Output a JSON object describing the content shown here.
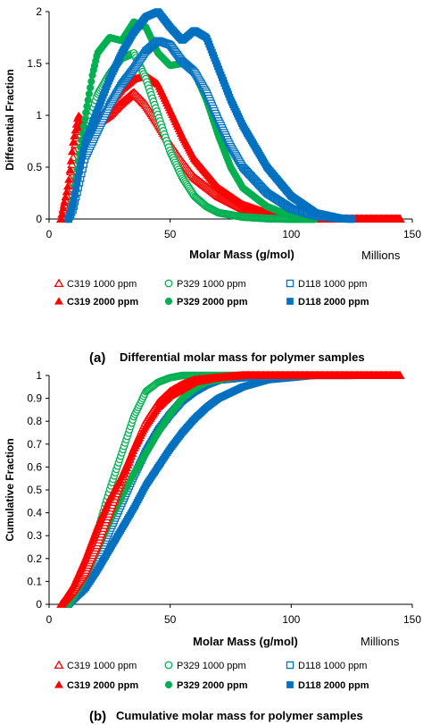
{
  "series_styles": [
    {
      "key": "C319_1000",
      "color": "#ff0000",
      "marker": "triangle-open"
    },
    {
      "key": "P329_1000",
      "color": "#00b050",
      "marker": "circle-open"
    },
    {
      "key": "D118_1000",
      "color": "#0070c0",
      "marker": "square-open"
    },
    {
      "key": "C319_2000",
      "color": "#ff0000",
      "marker": "triangle-filled"
    },
    {
      "key": "P329_2000",
      "color": "#00b050",
      "marker": "circle-filled"
    },
    {
      "key": "D118_2000",
      "color": "#0070c0",
      "marker": "square-filled"
    }
  ],
  "chart_data": [
    {
      "type": "scatter",
      "panel_label": "(a)",
      "caption": "Differential molar mass for polymer samples",
      "xlabel": "Molar Mass (g/mol)",
      "xlabel_units": "Millions",
      "ylabel": "Differential Fraction",
      "xlim": [
        0,
        150
      ],
      "ylim": [
        0,
        2
      ],
      "xticks": [
        "0",
        "50",
        "100",
        "150"
      ],
      "yticks": [
        "0",
        "0.5",
        "1",
        "1.5",
        "2"
      ],
      "grid": false,
      "legend_position": "bottom",
      "series": [
        {
          "name": "C319 1000 ppm",
          "x": [
            5,
            8,
            10,
            12,
            15,
            20,
            25,
            30,
            35,
            40,
            45,
            50,
            55,
            60,
            70,
            80,
            90,
            100,
            110,
            120,
            130,
            140,
            145
          ],
          "y": [
            0,
            0.3,
            0.6,
            0.88,
            0.9,
            0.92,
            1.0,
            1.12,
            1.22,
            1.1,
            0.92,
            0.72,
            0.55,
            0.4,
            0.22,
            0.1,
            0.04,
            0.015,
            0,
            0,
            0,
            0,
            0
          ]
        },
        {
          "name": "P329 1000 ppm",
          "x": [
            8,
            10,
            12,
            15,
            18,
            20,
            25,
            30,
            35,
            40,
            45,
            50,
            55,
            60,
            65,
            70,
            80,
            90,
            100,
            110
          ],
          "y": [
            0,
            0.15,
            0.4,
            0.75,
            1.05,
            1.2,
            1.4,
            1.55,
            1.6,
            1.35,
            1.0,
            0.65,
            0.4,
            0.22,
            0.12,
            0.06,
            0.02,
            0.005,
            0,
            0
          ]
        },
        {
          "name": "D118 1000 ppm",
          "x": [
            8,
            10,
            12,
            15,
            20,
            25,
            30,
            35,
            40,
            45,
            50,
            55,
            60,
            65,
            70,
            75,
            80,
            90,
            100,
            110,
            120,
            125
          ],
          "y": [
            0,
            0.1,
            0.3,
            0.6,
            0.85,
            1.1,
            1.3,
            1.45,
            1.62,
            1.72,
            1.68,
            1.52,
            1.42,
            1.22,
            0.95,
            0.7,
            0.5,
            0.25,
            0.1,
            0.03,
            0.005,
            0
          ]
        },
        {
          "name": "C319 2000 ppm",
          "x": [
            5,
            8,
            10,
            12,
            15,
            20,
            25,
            30,
            35,
            40,
            45,
            50,
            55,
            60,
            70,
            80,
            90,
            100,
            110,
            120,
            130,
            140,
            145
          ],
          "y": [
            0,
            0.35,
            0.75,
            1.0,
            0.92,
            0.95,
            1.1,
            1.25,
            1.35,
            1.38,
            1.3,
            1.05,
            0.8,
            0.58,
            0.3,
            0.14,
            0.06,
            0.02,
            0,
            0,
            0,
            0,
            0
          ]
        },
        {
          "name": "P329 2000 ppm",
          "x": [
            8,
            10,
            12,
            15,
            18,
            20,
            25,
            30,
            35,
            40,
            45,
            50,
            55,
            60,
            65,
            70,
            75,
            80,
            90,
            100,
            110
          ],
          "y": [
            0,
            0.2,
            0.55,
            1.0,
            1.4,
            1.6,
            1.75,
            1.72,
            1.9,
            1.85,
            1.6,
            1.48,
            1.5,
            1.42,
            1.15,
            0.8,
            0.5,
            0.3,
            0.12,
            0.03,
            0
          ]
        },
        {
          "name": "D118 2000 ppm",
          "x": [
            8,
            10,
            12,
            15,
            20,
            25,
            30,
            35,
            40,
            45,
            50,
            55,
            60,
            65,
            70,
            75,
            80,
            90,
            100,
            110,
            120,
            125
          ],
          "y": [
            0,
            0.15,
            0.4,
            0.75,
            1.05,
            1.35,
            1.6,
            1.8,
            1.95,
            2.0,
            1.85,
            1.72,
            1.82,
            1.75,
            1.45,
            1.15,
            0.9,
            0.5,
            0.22,
            0.06,
            0.01,
            0
          ]
        }
      ]
    },
    {
      "type": "scatter",
      "panel_label": "(b)",
      "caption": "Cumulative molar mass for polymer samples",
      "xlabel": "Molar Mass (g/mol)",
      "xlabel_units": "Millions",
      "ylabel": "Cumulative Fraction",
      "xlim": [
        0,
        150
      ],
      "ylim": [
        0,
        1
      ],
      "xticks": [
        "0",
        "50",
        "100",
        "150"
      ],
      "yticks": [
        "0",
        "0.1",
        "0.2",
        "0.3",
        "0.4",
        "0.5",
        "0.6",
        "0.7",
        "0.8",
        "0.9",
        "1"
      ],
      "grid": false,
      "legend_position": "bottom",
      "series": [
        {
          "name": "C319 1000 ppm",
          "x": [
            5,
            10,
            15,
            20,
            25,
            30,
            35,
            40,
            45,
            50,
            55,
            60,
            70,
            80,
            90,
            100,
            110,
            120,
            130,
            145
          ],
          "y": [
            0,
            0.06,
            0.14,
            0.26,
            0.4,
            0.54,
            0.68,
            0.8,
            0.88,
            0.93,
            0.96,
            0.98,
            0.99,
            1,
            1,
            1,
            1,
            1,
            1,
            1
          ]
        },
        {
          "name": "P329 1000 ppm",
          "x": [
            8,
            10,
            15,
            20,
            25,
            30,
            35,
            40,
            45,
            50,
            55,
            60,
            70,
            80,
            90,
            100,
            110
          ],
          "y": [
            0,
            0.04,
            0.15,
            0.32,
            0.5,
            0.66,
            0.82,
            0.93,
            0.97,
            0.99,
            1,
            1,
            1,
            1,
            1,
            1,
            1
          ]
        },
        {
          "name": "D118 1000 ppm",
          "x": [
            8,
            10,
            15,
            20,
            25,
            30,
            35,
            40,
            45,
            50,
            55,
            60,
            65,
            70,
            80,
            90,
            100,
            110,
            120,
            125
          ],
          "y": [
            0,
            0.03,
            0.1,
            0.2,
            0.32,
            0.44,
            0.56,
            0.67,
            0.76,
            0.83,
            0.89,
            0.93,
            0.96,
            0.98,
            0.99,
            1,
            1,
            1,
            1,
            1
          ]
        },
        {
          "name": "C319 2000 ppm",
          "x": [
            5,
            10,
            15,
            20,
            25,
            30,
            35,
            40,
            45,
            50,
            55,
            60,
            70,
            80,
            90,
            100,
            110,
            120,
            130,
            140,
            145
          ],
          "y": [
            0,
            0.08,
            0.2,
            0.34,
            0.46,
            0.56,
            0.68,
            0.78,
            0.86,
            0.91,
            0.94,
            0.97,
            0.99,
            1,
            1,
            1,
            1,
            1,
            1,
            1,
            1
          ]
        },
        {
          "name": "P329 2000 ppm",
          "x": [
            8,
            10,
            15,
            20,
            25,
            30,
            35,
            40,
            45,
            50,
            55,
            60,
            65,
            70,
            80,
            90,
            100,
            110
          ],
          "y": [
            0,
            0.03,
            0.12,
            0.24,
            0.36,
            0.47,
            0.57,
            0.66,
            0.75,
            0.83,
            0.9,
            0.94,
            0.97,
            0.98,
            1,
            1,
            1,
            1
          ]
        },
        {
          "name": "D118 2000 ppm",
          "x": [
            8,
            10,
            15,
            20,
            25,
            30,
            35,
            40,
            45,
            50,
            55,
            60,
            65,
            70,
            80,
            90,
            100,
            110,
            120,
            125
          ],
          "y": [
            0,
            0.02,
            0.07,
            0.15,
            0.24,
            0.33,
            0.42,
            0.52,
            0.6,
            0.68,
            0.75,
            0.81,
            0.86,
            0.9,
            0.95,
            0.98,
            0.99,
            1,
            1,
            1
          ]
        }
      ]
    }
  ]
}
